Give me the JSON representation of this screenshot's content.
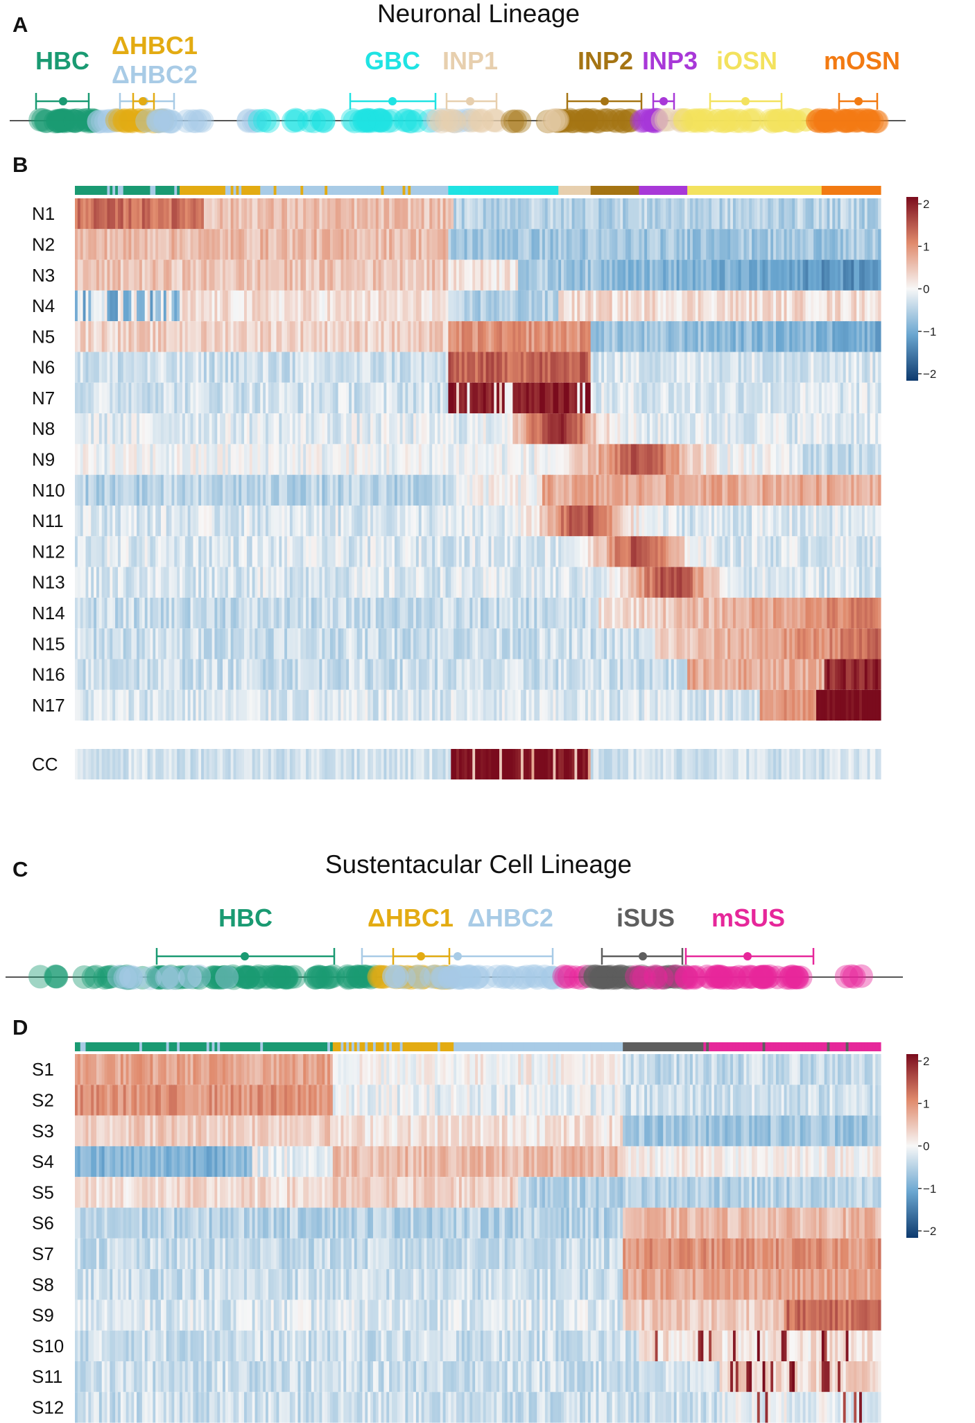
{
  "panels": {
    "A": {
      "letter": "A",
      "title": "Neuronal Lineage",
      "clusters": [
        {
          "label": "HBC",
          "color": "#1a9a72"
        },
        {
          "label": "ΔHBC1",
          "color": "#e3ab12"
        },
        {
          "label": "ΔHBC2",
          "color": "#a8cbe6"
        },
        {
          "label": "GBC",
          "color": "#1fe3e3"
        },
        {
          "label": "INP1",
          "color": "#e7cfae"
        },
        {
          "label": "INP2",
          "color": "#a57413"
        },
        {
          "label": "INP3",
          "color": "#a838d8"
        },
        {
          "label": "iOSN",
          "color": "#f3e25e"
        },
        {
          "label": "mOSN",
          "color": "#f27a12"
        }
      ]
    },
    "B": {
      "letter": "B",
      "legend_ticks": [
        "2",
        "1",
        "0",
        "−1",
        "−2"
      ]
    },
    "C": {
      "letter": "C",
      "title": "Sustentacular Cell Lineage",
      "clusters": [
        {
          "label": "HBC",
          "color": "#1a9a72"
        },
        {
          "label": "ΔHBC1",
          "color": "#e3ab12"
        },
        {
          "label": "ΔHBC2",
          "color": "#a8cbe6"
        },
        {
          "label": "iSUS",
          "color": "#5e5e5e"
        },
        {
          "label": "mSUS",
          "color": "#e6279a"
        }
      ]
    },
    "D": {
      "letter": "D",
      "legend_ticks": [
        "2",
        "1",
        "0",
        "−1",
        "−2"
      ]
    }
  },
  "colorscale": {
    "low": "#0d3a6e",
    "mid": "#f7f7f7",
    "high": "#7a0b1d"
  },
  "chart_data": [
    {
      "type": "heatmap",
      "panel": "B",
      "rows": [
        "N1",
        "N2",
        "N3",
        "N4",
        "N5",
        "N6",
        "N7",
        "N8",
        "N9",
        "N10",
        "N11",
        "N12",
        "N13",
        "N14",
        "N15",
        "N16",
        "N17"
      ],
      "extra_rows": [
        "CC"
      ],
      "color_range": [
        -2,
        2
      ],
      "column_groups": [
        "HBC",
        "ΔHBC1",
        "ΔHBC2",
        "GBC",
        "INP1",
        "INP2",
        "INP3",
        "iOSN",
        "mOSN"
      ]
    },
    {
      "type": "heatmap",
      "panel": "D",
      "rows": [
        "S1",
        "S2",
        "S3",
        "S4",
        "S5",
        "S6",
        "S7",
        "S8",
        "S9",
        "S10",
        "S11",
        "S12"
      ],
      "color_range": [
        -2,
        2
      ],
      "column_groups": [
        "HBC",
        "ΔHBC1",
        "ΔHBC2",
        "iSUS",
        "mSUS"
      ]
    }
  ]
}
